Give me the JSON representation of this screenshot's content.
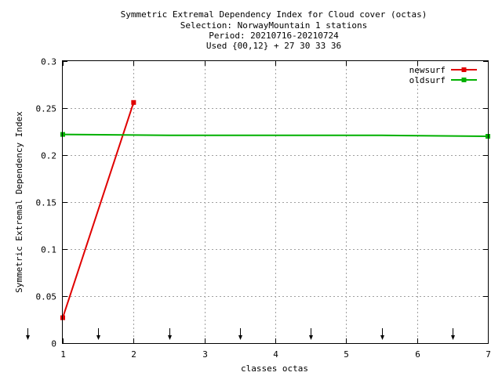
{
  "chart_data": {
    "type": "line",
    "title_lines": [
      "Symmetric Extremal Dependency Index  for Cloud cover (octas)",
      "Selection: NorwayMountain      1 stations",
      "Period: 20210716-20210724",
      "Used {00,12} + 27 30 33 36"
    ],
    "xlabel": "classes octas",
    "ylabel": "Symmetric Extremal Dependency Index",
    "xlim": [
      1,
      7
    ],
    "ylim": [
      0,
      0.3
    ],
    "xticks": [
      1,
      2,
      3,
      4,
      5,
      6,
      7
    ],
    "xtick_labels": [
      "1",
      "2",
      "3",
      "4",
      "5",
      "6",
      "7"
    ],
    "yticks": [
      0,
      0.05,
      0.1,
      0.15,
      0.2,
      0.25,
      0.3
    ],
    "ytick_labels": [
      "0",
      "0.05",
      "0.1",
      "0.15",
      "0.2",
      "0.25",
      "0.3"
    ],
    "grid": true,
    "legend_position": "top-right",
    "series": [
      {
        "name": "newsurf",
        "color": "#e00000",
        "x": [
          1,
          2
        ],
        "y": [
          0.027,
          0.256
        ],
        "markers": true
      },
      {
        "name": "oldsurf",
        "color": "#00b000",
        "x": [
          1,
          2.5,
          5.5,
          7
        ],
        "y": [
          0.222,
          0.221,
          0.221,
          0.22
        ],
        "markers_at_ends": true
      }
    ],
    "threshold_arrows_x": [
      0.5,
      1.5,
      2.5,
      3.5,
      4.5,
      5.5,
      6.5
    ]
  }
}
